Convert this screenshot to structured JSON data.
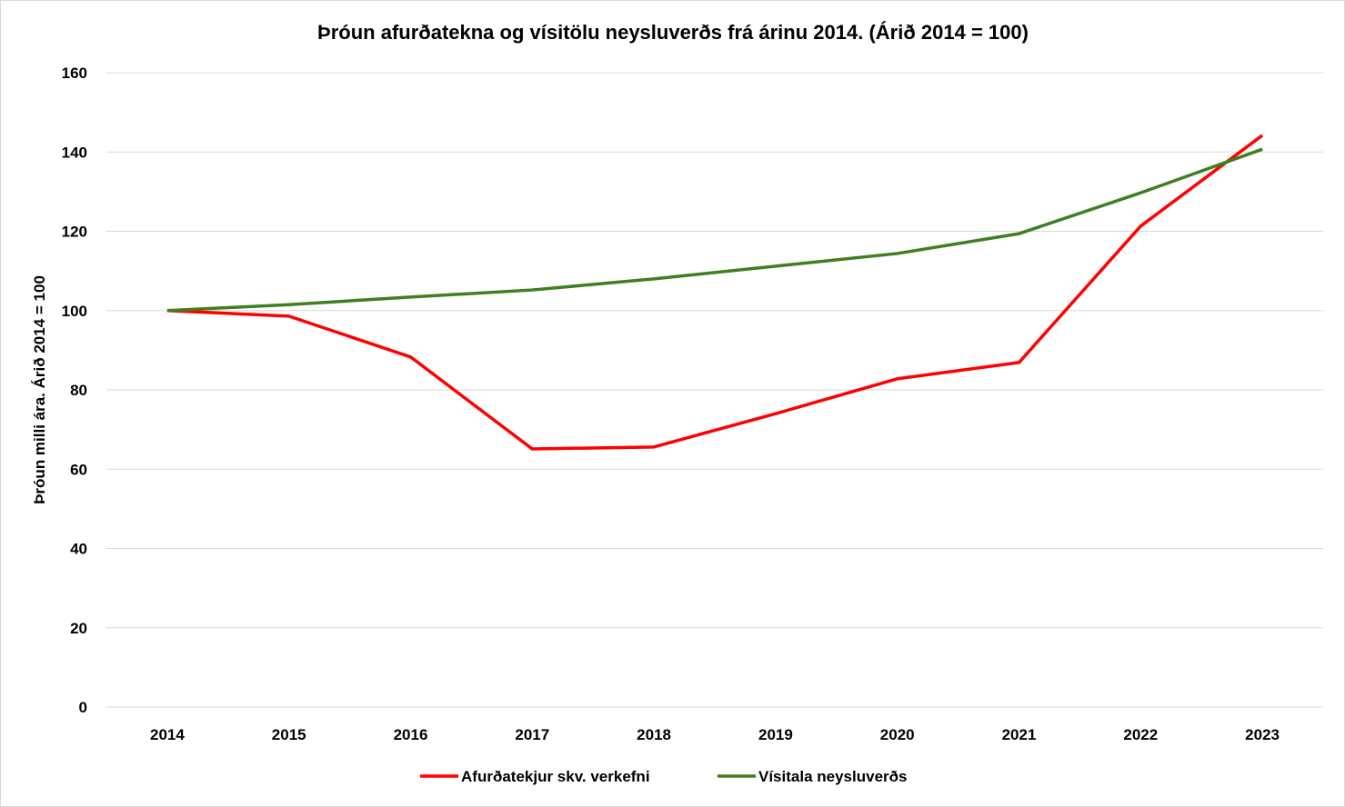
{
  "chart_data": {
    "type": "line",
    "title": "Þróun afurðatekna og vísitölu neysluverðs frá árinu 2014. (Árið 2014 = 100)",
    "xlabel": "",
    "ylabel": "Þróun milli ára. Árið 2014 = 100",
    "categories": [
      "2014",
      "2015",
      "2016",
      "2017",
      "2018",
      "2019",
      "2020",
      "2021",
      "2022",
      "2023"
    ],
    "ylim": [
      0,
      160
    ],
    "yticks": [
      0,
      20,
      40,
      60,
      80,
      100,
      120,
      140,
      160
    ],
    "grid": true,
    "legend": "bottom",
    "series": [
      {
        "name": "Afurðatekjur skv. verkefni",
        "color": "#ff0000",
        "values": [
          100,
          98.6,
          88.3,
          65.1,
          65.6,
          74.0,
          82.8,
          86.9,
          121.3,
          144.2
        ]
      },
      {
        "name": "Vísitala neysluverðs",
        "color": "#3f7f1f",
        "values": [
          100,
          101.5,
          103.4,
          105.2,
          108.0,
          111.2,
          114.4,
          119.4,
          129.7,
          140.7
        ]
      }
    ]
  }
}
